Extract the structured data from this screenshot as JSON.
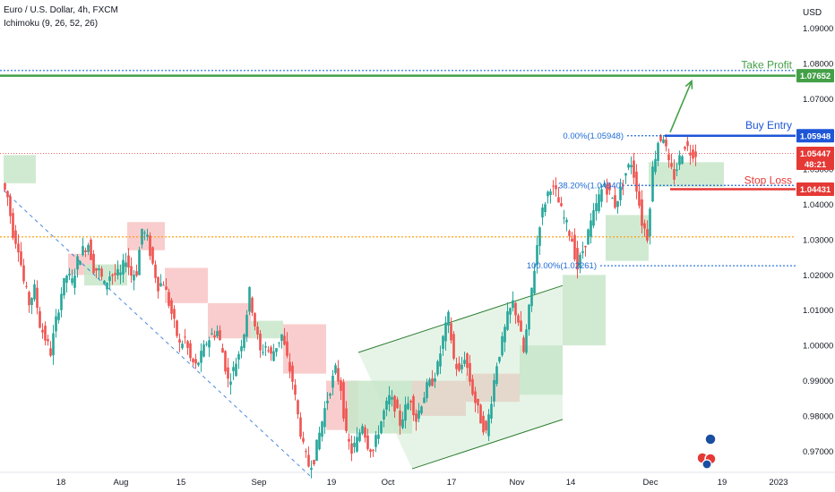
{
  "header": {
    "title": "Euro / U.S. Dollar, 4h, FXCM",
    "indicator": "Ichimoku (9, 26, 52, 26)"
  },
  "colors": {
    "up": "#26a69a",
    "down": "#ef5350",
    "take_profit": "#43a047",
    "buy_entry": "#1e56d8",
    "stop_loss": "#e53935",
    "fib": "#1e6bd6",
    "price_line": "#e53935",
    "horizontal": "#ff9800",
    "cloud_bull": "#c8e6c9",
    "cloud_bear": "#f8c4c4",
    "channel": "#2e7d32"
  },
  "chart_data": {
    "type": "candlestick",
    "symbol": "Euro / U.S. Dollar",
    "timeframe": "4h",
    "currency": "USD",
    "ylim": [
      0.964,
      1.098
    ],
    "price_axis_ticks": [
      "1.09000",
      "1.08000",
      "1.07000",
      "1.06000",
      "1.05000",
      "1.04000",
      "1.03000",
      "1.02000",
      "1.01000",
      "1.00000",
      "0.99000",
      "0.98000",
      "0.97000"
    ],
    "time_axis_ticks": [
      "18",
      "Aug",
      "15",
      "Sep",
      "19",
      "Oct",
      "17",
      "Nov",
      "14",
      "Dec",
      "19",
      "2023"
    ],
    "price_path": [
      [
        0,
        1.046
      ],
      [
        1,
        1.042
      ],
      [
        2,
        1.032
      ],
      [
        3,
        1.028
      ],
      [
        4,
        1.018
      ],
      [
        5,
        1.012
      ],
      [
        6,
        1.016
      ],
      [
        7,
        1.006
      ],
      [
        8,
        1.002
      ],
      [
        9,
        0.998
      ],
      [
        10,
        1.007
      ],
      [
        11,
        1.015
      ],
      [
        12,
        1.02
      ],
      [
        13,
        1.018
      ],
      [
        14,
        1.024
      ],
      [
        15,
        1.027
      ],
      [
        16,
        1.029
      ],
      [
        17,
        1.022
      ],
      [
        18,
        1.021
      ],
      [
        19,
        1.017
      ],
      [
        20,
        1.02
      ],
      [
        21,
        1.02
      ],
      [
        22,
        1.02
      ],
      [
        23,
        1.025
      ],
      [
        24,
        1.02
      ],
      [
        25,
        1.021
      ],
      [
        26,
        1.033
      ],
      [
        27,
        1.03
      ],
      [
        28,
        1.023
      ],
      [
        29,
        1.017
      ],
      [
        30,
        1.018
      ],
      [
        31,
        1.012
      ],
      [
        32,
        1.006
      ],
      [
        33,
        1.0
      ],
      [
        34,
        1.002
      ],
      [
        35,
        0.996
      ],
      [
        36,
        0.994
      ],
      [
        37,
        0.997
      ],
      [
        38,
        1.001
      ],
      [
        39,
        1.003
      ],
      [
        40,
        1.004
      ],
      [
        41,
        0.998
      ],
      [
        42,
        0.99
      ],
      [
        43,
        0.993
      ],
      [
        44,
        0.998
      ],
      [
        45,
        1.004
      ],
      [
        46,
        1.015
      ],
      [
        47,
        1.006
      ],
      [
        48,
        0.998
      ],
      [
        49,
        1.0
      ],
      [
        50,
        0.997
      ],
      [
        51,
        1.0
      ],
      [
        52,
        1.003
      ],
      [
        53,
        0.996
      ],
      [
        54,
        0.99
      ],
      [
        55,
        0.98
      ],
      [
        56,
        0.971
      ],
      [
        57,
        0.966
      ],
      [
        58,
        0.968
      ],
      [
        59,
        0.975
      ],
      [
        60,
        0.982
      ],
      [
        61,
        0.988
      ],
      [
        62,
        0.993
      ],
      [
        63,
        0.988
      ],
      [
        64,
        0.974
      ],
      [
        65,
        0.97
      ],
      [
        66,
        0.973
      ],
      [
        67,
        0.978
      ],
      [
        68,
        0.972
      ],
      [
        69,
        0.97
      ],
      [
        70,
        0.976
      ],
      [
        71,
        0.981
      ],
      [
        72,
        0.985
      ],
      [
        73,
        0.983
      ],
      [
        74,
        0.978
      ],
      [
        75,
        0.982
      ],
      [
        76,
        0.985
      ],
      [
        77,
        0.979
      ],
      [
        78,
        0.984
      ],
      [
        79,
        0.988
      ],
      [
        80,
        0.99
      ],
      [
        81,
        0.994
      ],
      [
        82,
        1.002
      ],
      [
        83,
        1.008
      ],
      [
        84,
        0.996
      ],
      [
        85,
        0.992
      ],
      [
        86,
        0.997
      ],
      [
        87,
        0.99
      ],
      [
        88,
        0.984
      ],
      [
        89,
        0.979
      ],
      [
        90,
        0.975
      ],
      [
        91,
        0.985
      ],
      [
        92,
        0.995
      ],
      [
        93,
        1.001
      ],
      [
        94,
        1.008
      ],
      [
        95,
        1.012
      ],
      [
        96,
        1.007
      ],
      [
        97,
        0.998
      ],
      [
        98,
        1.01
      ],
      [
        99,
        1.022
      ],
      [
        100,
        1.035
      ],
      [
        101,
        1.041
      ],
      [
        102,
        1.0454
      ],
      [
        103,
        1.043
      ],
      [
        104,
        1.038
      ],
      [
        105,
        1.034
      ],
      [
        106,
        1.03
      ],
      [
        107,
        1.022
      ],
      [
        108,
        1.027
      ],
      [
        109,
        1.032
      ],
      [
        110,
        1.037
      ],
      [
        111,
        1.042
      ],
      [
        112,
        1.046
      ],
      [
        113,
        1.043
      ],
      [
        114,
        1.04
      ],
      [
        115,
        1.044
      ],
      [
        116,
        1.049
      ],
      [
        117,
        1.052
      ],
      [
        118,
        1.045
      ],
      [
        119,
        1.035
      ],
      [
        120,
        1.031
      ],
      [
        121,
        1.05
      ],
      [
        122,
        1.058
      ],
      [
        123,
        1.0595
      ],
      [
        124,
        1.051
      ],
      [
        125,
        1.048
      ],
      [
        126,
        1.053
      ],
      [
        127,
        1.057
      ],
      [
        128,
        1.055
      ],
      [
        129,
        1.0545
      ]
    ],
    "ichimoku_cloud": [
      {
        "index_range": [
          0,
          6
        ],
        "top": 1.054,
        "bottom": 1.046,
        "trend": "bullish"
      },
      {
        "index_range": [
          12,
          17
        ],
        "top": 1.026,
        "bottom": 1.02,
        "trend": "bearish"
      },
      {
        "index_range": [
          15,
          23
        ],
        "top": 1.023,
        "bottom": 1.017,
        "trend": "bullish"
      },
      {
        "index_range": [
          23,
          30
        ],
        "top": 1.035,
        "bottom": 1.027,
        "trend": "bearish"
      },
      {
        "index_range": [
          30,
          38
        ],
        "top": 1.022,
        "bottom": 1.012,
        "trend": "bearish"
      },
      {
        "index_range": [
          38,
          46
        ],
        "top": 1.012,
        "bottom": 1.002,
        "trend": "bearish"
      },
      {
        "index_range": [
          46,
          52
        ],
        "top": 1.007,
        "bottom": 1.002,
        "trend": "bullish"
      },
      {
        "index_range": [
          52,
          60
        ],
        "top": 1.006,
        "bottom": 0.992,
        "trend": "bearish"
      },
      {
        "index_range": [
          60,
          66
        ],
        "top": 0.99,
        "bottom": 0.976,
        "trend": "bearish"
      },
      {
        "index_range": [
          64,
          76
        ],
        "top": 0.99,
        "bottom": 0.975,
        "trend": "bullish"
      },
      {
        "index_range": [
          76,
          86
        ],
        "top": 0.99,
        "bottom": 0.98,
        "trend": "bearish"
      },
      {
        "index_range": [
          86,
          96
        ],
        "top": 0.992,
        "bottom": 0.984,
        "trend": "bearish"
      },
      {
        "index_range": [
          96,
          104
        ],
        "top": 1.0,
        "bottom": 0.986,
        "trend": "bullish"
      },
      {
        "index_range": [
          104,
          112
        ],
        "top": 1.02,
        "bottom": 1.0,
        "trend": "bullish"
      },
      {
        "index_range": [
          112,
          120
        ],
        "top": 1.037,
        "bottom": 1.024,
        "trend": "bullish"
      },
      {
        "index_range": [
          120,
          134
        ],
        "top": 1.052,
        "bottom": 1.045,
        "trend": "bullish"
      }
    ],
    "annotations": {
      "take_profit": {
        "label": "Take Profit",
        "value": "1.07652",
        "price": 1.07652
      },
      "take_profit_level2": {
        "price": 1.078
      },
      "buy_entry": {
        "label": "Buy Entry",
        "value": "1.05948",
        "price": 1.05948
      },
      "stop_loss": {
        "label": "Stop Loss",
        "value": "1.04431",
        "price": 1.04431
      },
      "current": {
        "value": "1.05447",
        "countdown": "48:21",
        "price": 1.05447
      },
      "horizontal_level": {
        "price": 1.0308
      },
      "fib_levels": [
        {
          "label": "0.00%(1.05948)",
          "price": 1.05948
        },
        {
          "label": "38.20%(1.04540)",
          "price": 1.0454
        },
        {
          "label": "100.00%(1.02261)",
          "price": 1.02261
        }
      ],
      "downtrend_line": {
        "from": [
          0,
          1.044
        ],
        "to": [
          57,
          0.963
        ]
      },
      "channel": {
        "upper": {
          "from": [
            66,
            0.998
          ],
          "to": [
            104,
            1.017
          ]
        },
        "lower": {
          "from": [
            76,
            0.965
          ],
          "to": [
            104,
            0.979
          ]
        }
      },
      "target_arrow": {
        "from": [
          124,
          1.0605
        ],
        "to": [
          128,
          1.075
        ]
      }
    }
  }
}
